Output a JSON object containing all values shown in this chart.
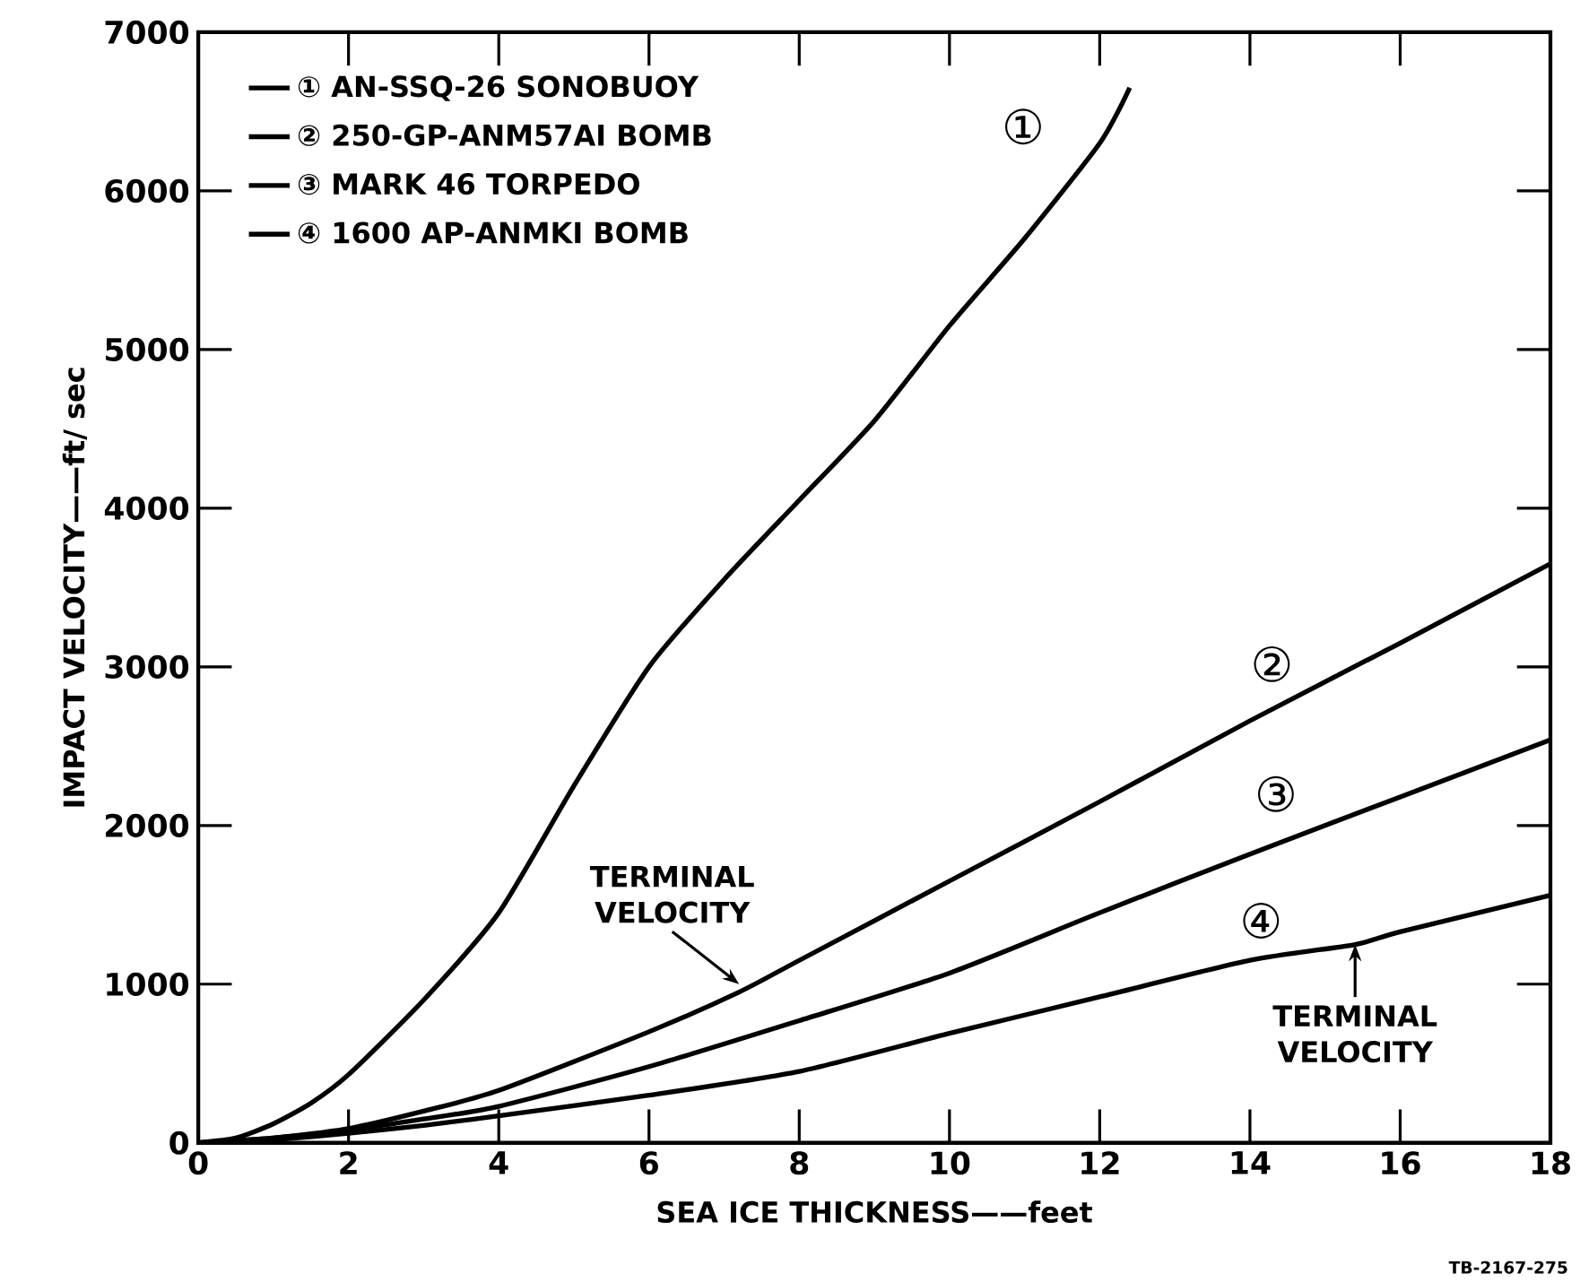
{
  "chart_data": {
    "type": "line",
    "xlabel": "SEA ICE THICKNESS——feet",
    "ylabel": "IMPACT VELOCITY——ft/ sec",
    "xlim": [
      0,
      18
    ],
    "ylim": [
      0,
      7000
    ],
    "xticks": [
      0,
      2,
      4,
      6,
      8,
      10,
      12,
      14,
      16,
      18
    ],
    "yticks": [
      0,
      1000,
      2000,
      3000,
      4000,
      5000,
      6000,
      7000
    ],
    "grid": false,
    "legend": "top left",
    "marker": "none",
    "line_style": "solid",
    "series": [
      {
        "name": "① AN-SSQ-26 SONOBUOY",
        "color": "#000000",
        "x": [
          0,
          0.5,
          1,
          1.5,
          2,
          3,
          4,
          5,
          6,
          7,
          8,
          9,
          10,
          11,
          12,
          12.4
        ],
        "values": [
          0,
          30,
          120,
          250,
          430,
          900,
          1450,
          2250,
          3000,
          3550,
          4050,
          4550,
          5150,
          5700,
          6300,
          6650
        ]
      },
      {
        "name": "② 250-GP-ANM57AI BOMB",
        "color": "#000000",
        "x": [
          0,
          1,
          2,
          3,
          4,
          6,
          7.2,
          8,
          10,
          12,
          14,
          16,
          18
        ],
        "values": [
          0,
          30,
          90,
          200,
          330,
          700,
          950,
          1150,
          1650,
          2150,
          2660,
          3150,
          3650
        ]
      },
      {
        "name": "③ MARK 46 TORPEDO",
        "color": "#000000",
        "x": [
          0,
          1,
          2,
          3,
          4,
          6,
          8,
          10,
          12,
          14,
          16,
          18
        ],
        "values": [
          0,
          30,
          80,
          150,
          230,
          480,
          770,
          1070,
          1450,
          1820,
          2180,
          2540
        ]
      },
      {
        "name": "④ 1600 AP-ANMKI BOMB",
        "color": "#000000",
        "x": [
          0,
          1,
          2,
          3,
          4,
          6,
          8,
          10,
          12,
          14,
          15.4,
          16,
          18
        ],
        "values": [
          0,
          20,
          60,
          110,
          170,
          300,
          450,
          690,
          920,
          1150,
          1250,
          1330,
          1560
        ]
      }
    ],
    "annotations": [
      "①",
      "②",
      "③",
      "④",
      {
        "text": "TERMINAL VELOCITY",
        "x": 7.2,
        "y": 1000
      },
      {
        "text": "TERMINAL VELOCITY",
        "x": 15.4,
        "y": 1250
      },
      "TB-2167-275"
    ]
  }
}
